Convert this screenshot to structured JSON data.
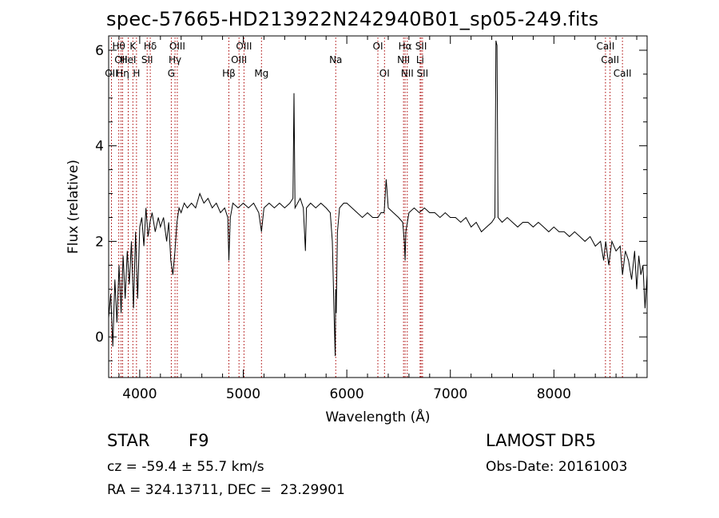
{
  "header": {
    "title": "spec-57665-HD213922N242940B01_sp05-249.fits"
  },
  "info": {
    "object_type": "STAR",
    "subclass": "F9",
    "survey": "LAMOST DR5",
    "cz": "cz = -59.4 ± 55.7 km/s",
    "obs_date": "Obs-Date: 20161003",
    "radec": "RA = 324.13711, DEC =  23.29901"
  },
  "chart_data": {
    "type": "line",
    "title": "spec-57665-HD213922N242940B01_sp05-249.fits",
    "xlabel": "Wavelength (Å)",
    "ylabel": "Flux (relative)",
    "xlim": [
      3700,
      8900
    ],
    "ylim": [
      -0.85,
      6.3
    ],
    "xticks": [
      4000,
      5000,
      6000,
      7000,
      8000
    ],
    "yticks": [
      0,
      2,
      4,
      6
    ],
    "line_color": "#000000",
    "marker_color": "#aa0000",
    "lines": [
      {
        "label": "OII",
        "x": 3727,
        "row": 2
      },
      {
        "label": "Hθ",
        "x": 3798,
        "row": 0
      },
      {
        "label": "OII",
        "x": 3820,
        "row": 1
      },
      {
        "label": "Hη",
        "x": 3835,
        "row": 2
      },
      {
        "label": "HeI",
        "x": 3889,
        "row": 1
      },
      {
        "label": "K",
        "x": 3934,
        "row": 0
      },
      {
        "label": "H",
        "x": 3969,
        "row": 2
      },
      {
        "label": "Hδ",
        "x": 4102,
        "row": 0
      },
      {
        "label": "SII",
        "x": 4072,
        "row": 1
      },
      {
        "label": "OIII",
        "x": 4363,
        "row": 0
      },
      {
        "label": "Hγ",
        "x": 4341,
        "row": 1
      },
      {
        "label": "G",
        "x": 4305,
        "row": 2
      },
      {
        "label": "Hβ",
        "x": 4861,
        "row": 2
      },
      {
        "label": "OIII",
        "x": 5007,
        "row": 0
      },
      {
        "label": "OIII",
        "x": 4959,
        "row": 1
      },
      {
        "label": "Mg",
        "x": 5176,
        "row": 2
      },
      {
        "label": "Na",
        "x": 5893,
        "row": 1
      },
      {
        "label": "OI",
        "x": 6300,
        "row": 0
      },
      {
        "label": "OI",
        "x": 6364,
        "row": 2
      },
      {
        "label": "Hα",
        "x": 6563,
        "row": 0
      },
      {
        "label": "NII",
        "x": 6548,
        "row": 1
      },
      {
        "label": "NII",
        "x": 6584,
        "row": 2
      },
      {
        "label": "SII",
        "x": 6717,
        "row": 0
      },
      {
        "label": "Li",
        "x": 6708,
        "row": 1
      },
      {
        "label": "SII",
        "x": 6731,
        "row": 2
      },
      {
        "label": "CaII",
        "x": 8498,
        "row": 0
      },
      {
        "label": "CaII",
        "x": 8542,
        "row": 1
      },
      {
        "label": "CaII",
        "x": 8662,
        "row": 2
      }
    ],
    "series": [
      {
        "points": [
          [
            3700,
            0.4
          ],
          [
            3720,
            0.9
          ],
          [
            3740,
            -0.2
          ],
          [
            3760,
            1.2
          ],
          [
            3780,
            0.3
          ],
          [
            3800,
            1.5
          ],
          [
            3820,
            0.5
          ],
          [
            3840,
            1.7
          ],
          [
            3860,
            0.8
          ],
          [
            3880,
            1.8
          ],
          [
            3900,
            1.1
          ],
          [
            3920,
            2.0
          ],
          [
            3940,
            0.6
          ],
          [
            3960,
            2.2
          ],
          [
            3980,
            0.8
          ],
          [
            4000,
            2.3
          ],
          [
            4020,
            2.5
          ],
          [
            4040,
            1.9
          ],
          [
            4060,
            2.7
          ],
          [
            4080,
            2.1
          ],
          [
            4100,
            2.4
          ],
          [
            4120,
            2.6
          ],
          [
            4150,
            2.2
          ],
          [
            4180,
            2.5
          ],
          [
            4200,
            2.3
          ],
          [
            4230,
            2.5
          ],
          [
            4260,
            2.0
          ],
          [
            4280,
            2.4
          ],
          [
            4300,
            1.6
          ],
          [
            4320,
            1.3
          ],
          [
            4340,
            1.8
          ],
          [
            4360,
            2.4
          ],
          [
            4380,
            2.7
          ],
          [
            4400,
            2.6
          ],
          [
            4430,
            2.8
          ],
          [
            4460,
            2.7
          ],
          [
            4500,
            2.8
          ],
          [
            4540,
            2.7
          ],
          [
            4580,
            3.0
          ],
          [
            4620,
            2.8
          ],
          [
            4660,
            2.9
          ],
          [
            4700,
            2.7
          ],
          [
            4740,
            2.8
          ],
          [
            4780,
            2.6
          ],
          [
            4820,
            2.7
          ],
          [
            4850,
            2.5
          ],
          [
            4861,
            1.6
          ],
          [
            4875,
            2.5
          ],
          [
            4900,
            2.8
          ],
          [
            4950,
            2.7
          ],
          [
            5000,
            2.8
          ],
          [
            5050,
            2.7
          ],
          [
            5100,
            2.8
          ],
          [
            5150,
            2.6
          ],
          [
            5176,
            2.2
          ],
          [
            5200,
            2.7
          ],
          [
            5250,
            2.8
          ],
          [
            5300,
            2.7
          ],
          [
            5350,
            2.8
          ],
          [
            5400,
            2.7
          ],
          [
            5450,
            2.8
          ],
          [
            5480,
            2.9
          ],
          [
            5490,
            5.1
          ],
          [
            5500,
            2.7
          ],
          [
            5550,
            2.9
          ],
          [
            5580,
            2.7
          ],
          [
            5600,
            1.8
          ],
          [
            5610,
            2.7
          ],
          [
            5650,
            2.8
          ],
          [
            5700,
            2.7
          ],
          [
            5750,
            2.8
          ],
          [
            5800,
            2.7
          ],
          [
            5840,
            2.6
          ],
          [
            5860,
            2.0
          ],
          [
            5880,
            0.2
          ],
          [
            5888,
            -0.4
          ],
          [
            5893,
            1.0
          ],
          [
            5898,
            0.5
          ],
          [
            5910,
            2.2
          ],
          [
            5930,
            2.7
          ],
          [
            5970,
            2.8
          ],
          [
            6000,
            2.8
          ],
          [
            6050,
            2.7
          ],
          [
            6100,
            2.6
          ],
          [
            6150,
            2.5
          ],
          [
            6200,
            2.6
          ],
          [
            6250,
            2.5
          ],
          [
            6300,
            2.5
          ],
          [
            6330,
            2.6
          ],
          [
            6360,
            2.6
          ],
          [
            6380,
            3.3
          ],
          [
            6400,
            2.7
          ],
          [
            6450,
            2.6
          ],
          [
            6500,
            2.5
          ],
          [
            6540,
            2.4
          ],
          [
            6555,
            2.0
          ],
          [
            6563,
            1.6
          ],
          [
            6570,
            2.2
          ],
          [
            6600,
            2.6
          ],
          [
            6650,
            2.7
          ],
          [
            6700,
            2.6
          ],
          [
            6750,
            2.7
          ],
          [
            6800,
            2.6
          ],
          [
            6850,
            2.6
          ],
          [
            6900,
            2.5
          ],
          [
            6950,
            2.6
          ],
          [
            7000,
            2.5
          ],
          [
            7050,
            2.5
          ],
          [
            7100,
            2.4
          ],
          [
            7150,
            2.5
          ],
          [
            7200,
            2.3
          ],
          [
            7250,
            2.4
          ],
          [
            7300,
            2.2
          ],
          [
            7350,
            2.3
          ],
          [
            7400,
            2.4
          ],
          [
            7430,
            2.5
          ],
          [
            7440,
            6.2
          ],
          [
            7450,
            6.1
          ],
          [
            7460,
            2.5
          ],
          [
            7500,
            2.4
          ],
          [
            7550,
            2.5
          ],
          [
            7600,
            2.4
          ],
          [
            7650,
            2.3
          ],
          [
            7700,
            2.4
          ],
          [
            7750,
            2.4
          ],
          [
            7800,
            2.3
          ],
          [
            7850,
            2.4
          ],
          [
            7900,
            2.3
          ],
          [
            7950,
            2.2
          ],
          [
            8000,
            2.3
          ],
          [
            8050,
            2.2
          ],
          [
            8100,
            2.2
          ],
          [
            8150,
            2.1
          ],
          [
            8200,
            2.2
          ],
          [
            8250,
            2.1
          ],
          [
            8300,
            2.0
          ],
          [
            8350,
            2.1
          ],
          [
            8400,
            1.9
          ],
          [
            8450,
            2.0
          ],
          [
            8480,
            1.6
          ],
          [
            8500,
            2.0
          ],
          [
            8530,
            1.5
          ],
          [
            8560,
            2.0
          ],
          [
            8600,
            1.8
          ],
          [
            8640,
            1.9
          ],
          [
            8662,
            1.3
          ],
          [
            8690,
            1.8
          ],
          [
            8720,
            1.6
          ],
          [
            8750,
            1.2
          ],
          [
            8780,
            1.8
          ],
          [
            8800,
            1.0
          ],
          [
            8820,
            1.7
          ],
          [
            8840,
            1.3
          ],
          [
            8860,
            1.5
          ],
          [
            8880,
            0.6
          ],
          [
            8900,
            1.3
          ]
        ]
      }
    ]
  }
}
